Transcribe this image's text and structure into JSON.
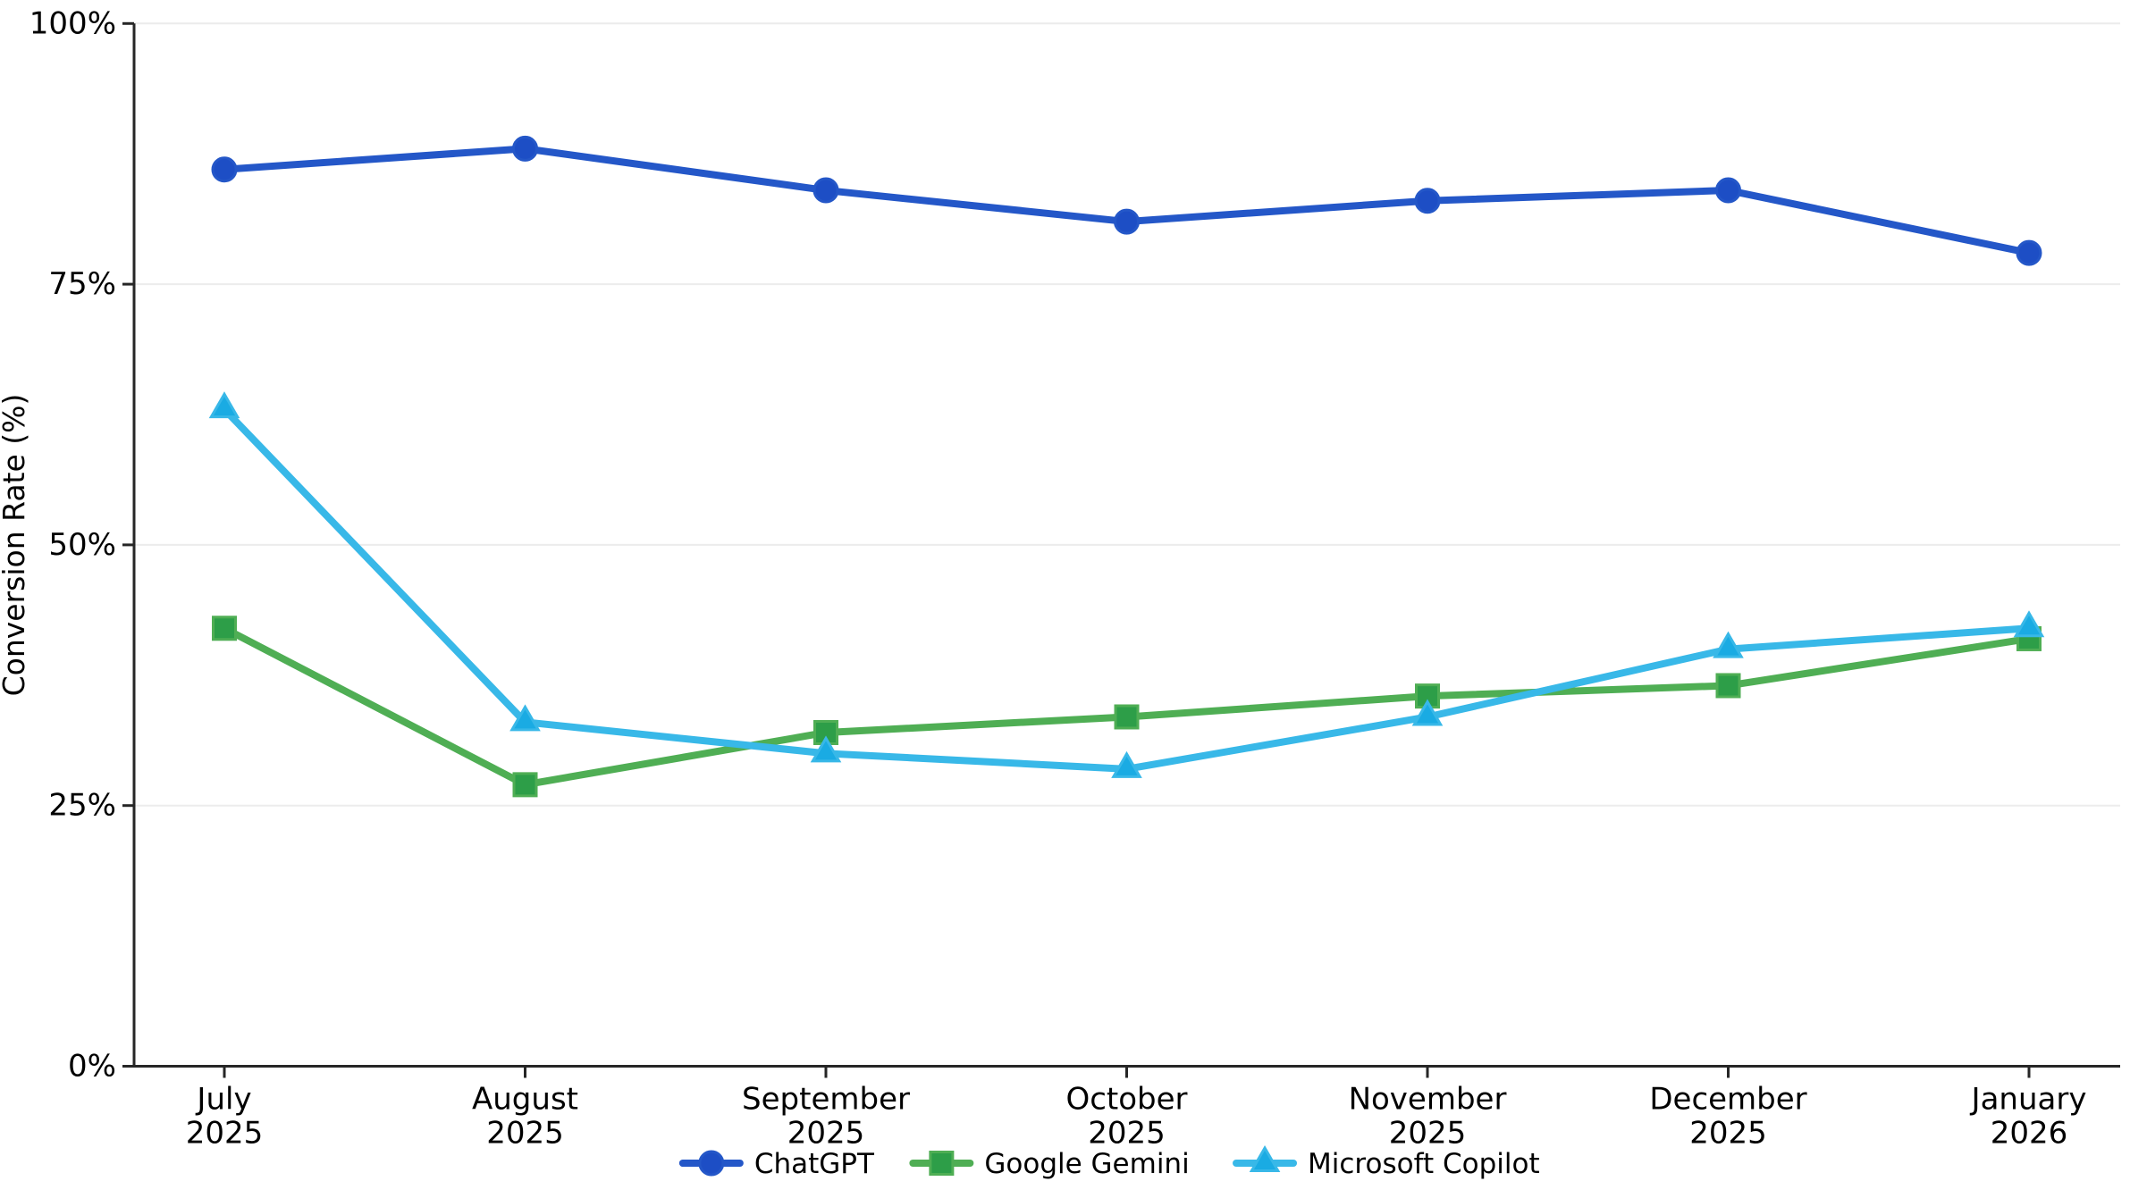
{
  "chart_data": {
    "type": "line",
    "title": "",
    "xlabel": "",
    "ylabel": "Conversion Rate (%)",
    "categories": [
      "July 2025",
      "August 2025",
      "September 2025",
      "October 2025",
      "November 2025",
      "December 2025",
      "January 2026"
    ],
    "x_tick_labels": [
      {
        "line1": "July",
        "line2": "2025"
      },
      {
        "line1": "August",
        "line2": "2025"
      },
      {
        "line1": "September",
        "line2": "2025"
      },
      {
        "line1": "October",
        "line2": "2025"
      },
      {
        "line1": "November",
        "line2": "2025"
      },
      {
        "line1": "December",
        "line2": "2025"
      },
      {
        "line1": "January",
        "line2": "2026"
      }
    ],
    "y_ticks": [
      0,
      25,
      50,
      75,
      100
    ],
    "y_tick_labels": [
      "0%",
      "25%",
      "50%",
      "75%",
      "100%"
    ],
    "ylim": [
      0,
      100
    ],
    "grid": "horizontal",
    "grid_color": "#ececec",
    "axis_color": "#262626",
    "legend_position": "bottom-center",
    "series": [
      {
        "name": "ChatGPT",
        "marker": "circle",
        "color": "#2457c8",
        "marker_color": "#1d4ec5",
        "values": [
          86,
          88,
          84,
          81,
          83,
          84,
          78
        ]
      },
      {
        "name": "Google Gemini",
        "marker": "square",
        "color": "#4fae54",
        "marker_color": "#2d9e48",
        "values": [
          42,
          27,
          32,
          33.5,
          35.5,
          36.5,
          41
        ]
      },
      {
        "name": "Microsoft Copilot",
        "marker": "triangle",
        "color": "#38b8e8",
        "marker_color": "#1aabe3",
        "values": [
          63,
          33,
          30,
          28.5,
          33.5,
          40,
          42
        ]
      }
    ]
  }
}
